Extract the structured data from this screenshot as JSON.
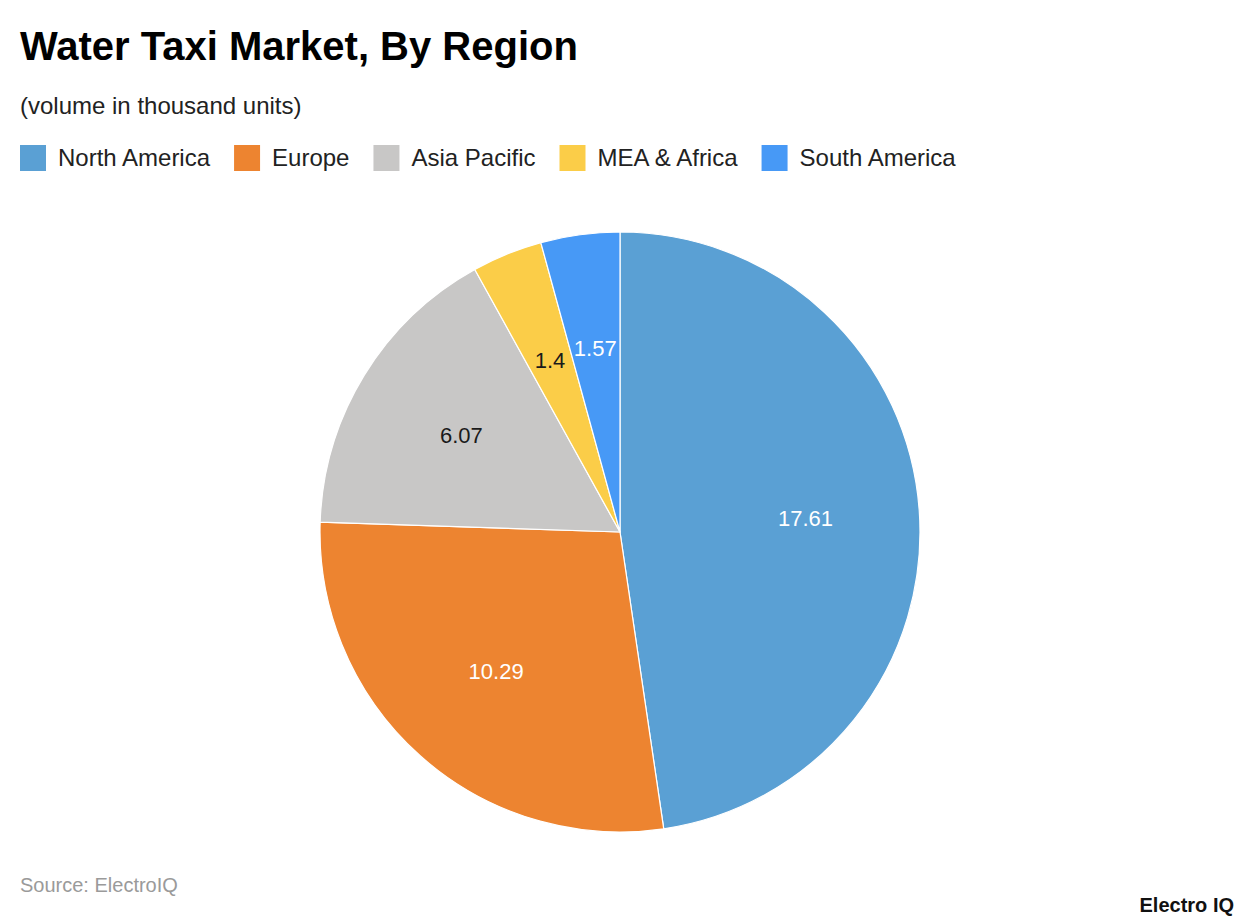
{
  "chart_data": {
    "type": "pie",
    "title": "Water Taxi Market, By Region",
    "subtitle": "(volume in thousand units)",
    "categories": [
      "North America",
      "Europe",
      "Asia Pacific",
      "MEA & Africa",
      "South America"
    ],
    "values": [
      17.61,
      10.29,
      6.07,
      1.4,
      1.57
    ],
    "colors": [
      "#5aa0d4",
      "#ed8430",
      "#c8c7c6",
      "#fbcd48",
      "#4799f6"
    ],
    "data_labels": true,
    "legend": "top-left",
    "source": "Source: ElectroIQ",
    "watermark": "Electro IQ"
  }
}
